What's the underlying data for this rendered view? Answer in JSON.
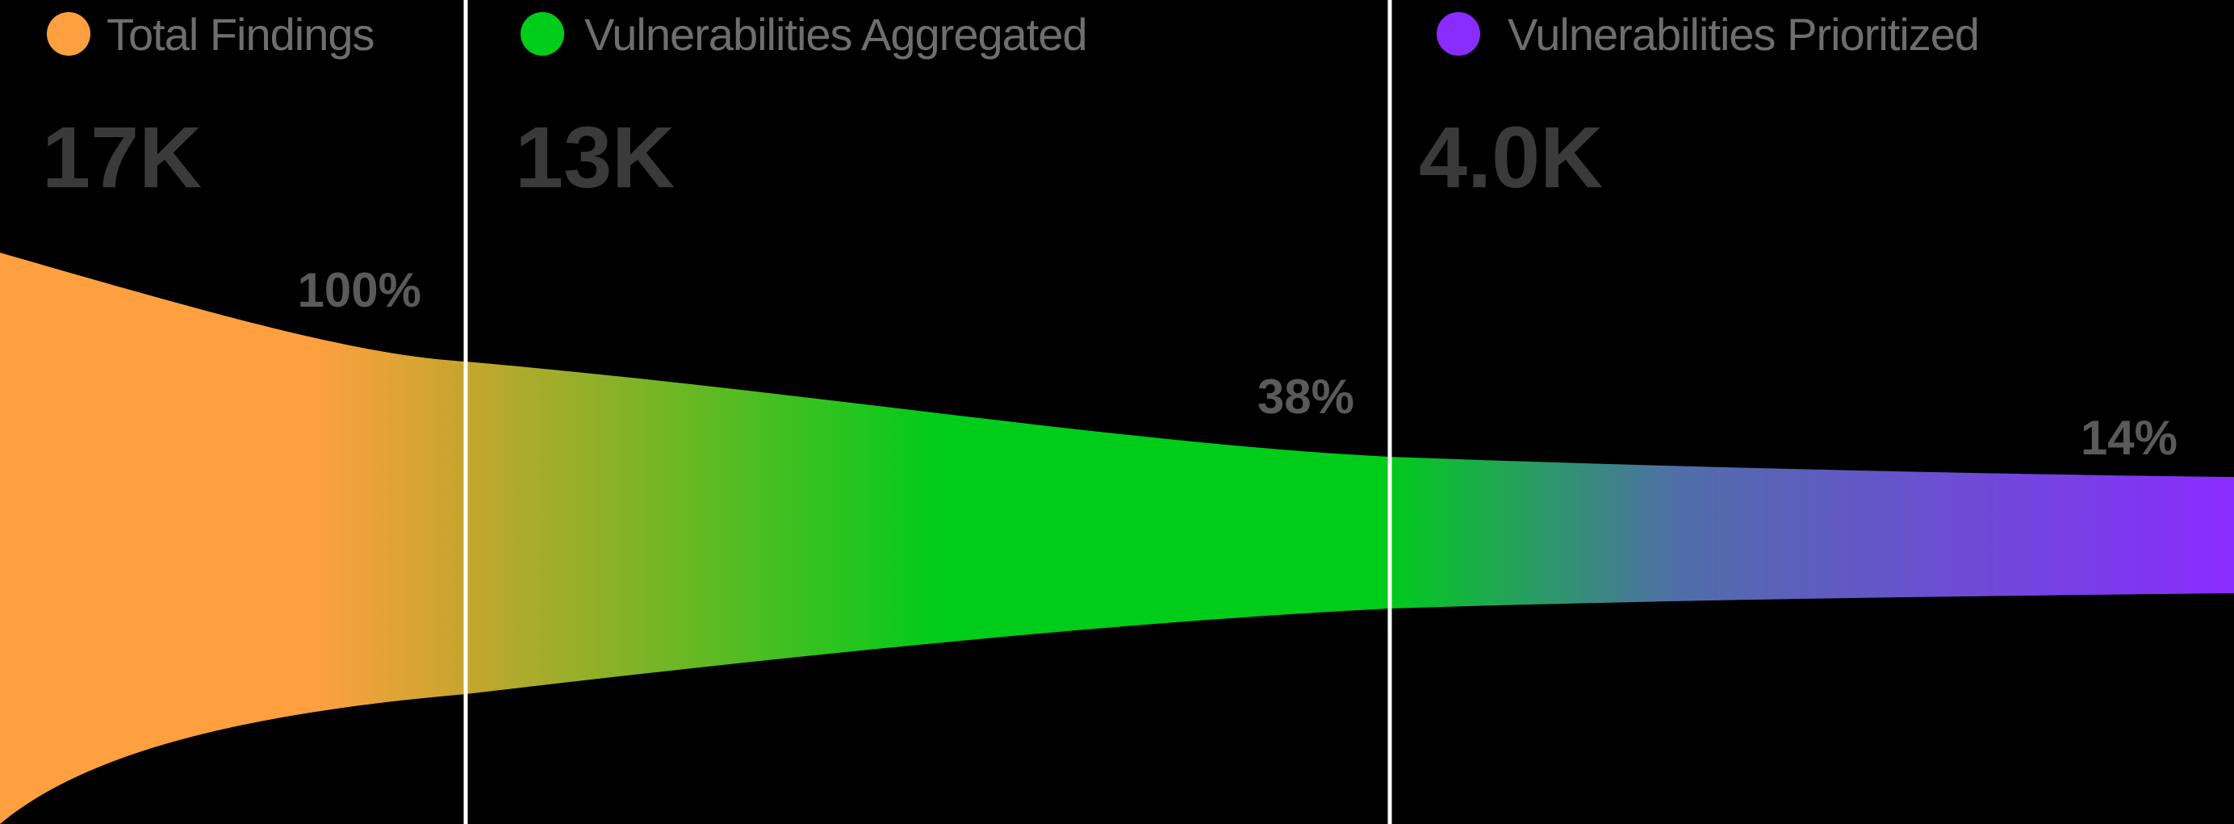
{
  "chart_data": {
    "type": "funnel",
    "stages": [
      {
        "label": "Total Findings",
        "value_label": "17K",
        "value": 17000,
        "percent_label": "100%",
        "percent": 100,
        "color": "#FFA040"
      },
      {
        "label": "Vulnerabilities Aggregated",
        "value_label": "13K",
        "value": 13000,
        "percent_label": "38%",
        "percent": 38,
        "color": "#00CC1A"
      },
      {
        "label": "Vulnerabilities Prioritized",
        "value_label": "4.0K",
        "value": 4000,
        "percent_label": "14%",
        "percent": 14,
        "color": "#8A2BFF"
      }
    ],
    "colors": {
      "background": "#000000",
      "divider": "#FFFFFF",
      "transition_1": "#C9A52E",
      "transition_2": "#4F6EA8"
    }
  }
}
